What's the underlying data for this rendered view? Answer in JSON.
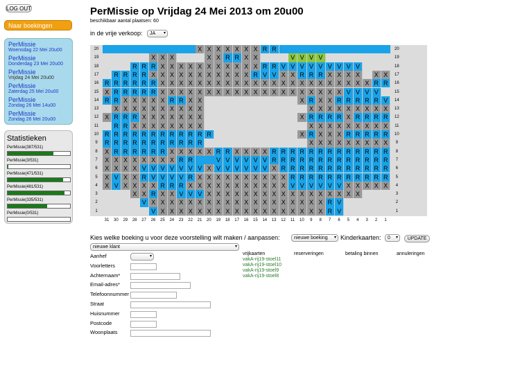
{
  "sidebar": {
    "logout_label": "LOG OUT",
    "naar_label": "Naar boekingen",
    "shows": [
      {
        "title": "PerMissie",
        "date": "Woensdag 22 Mei 20u00",
        "active": false
      },
      {
        "title": "PerMissie",
        "date": "Donderdag 23 Mei 20u00",
        "active": false
      },
      {
        "title": "PerMissie",
        "date": "Vrijdag 24 Mei 20u00",
        "active": true
      },
      {
        "title": "PerMissie",
        "date": "Zaterdag 25 Mei 20u00",
        "active": false
      },
      {
        "title": "PerMissie",
        "date": "Zondag 26 Mei 14u00",
        "active": false
      },
      {
        "title": "PerMissie",
        "date": "Zondag 26 Mei 20u00",
        "active": false
      }
    ],
    "stats_title": "Statistieken",
    "stats": [
      {
        "label": "PerMissie(387/531)",
        "fraction": 0.73
      },
      {
        "label": "PerMissie(3/531)",
        "fraction": 0.01
      },
      {
        "label": "PerMissie(471/531)",
        "fraction": 0.89
      },
      {
        "label": "PerMissie(481/531)",
        "fraction": 0.91
      },
      {
        "label": "PerMissie(335/531)",
        "fraction": 0.63
      },
      {
        "label": "PerMissie(0/531)",
        "fraction": 0.0
      }
    ]
  },
  "header": {
    "title": "PerMissie op Vrijdag 24 Mei 2013 om 20u00",
    "capacity": "beschikbaar aantal plaatsen: 60",
    "vrije_label": "in de vrije verkoop:",
    "vrije_value": "JA"
  },
  "legend_colors": {
    "free": "#1aa3e8",
    "taken": "#999999",
    "selected": "#8cc63f",
    "empty": "#dcdcdc"
  },
  "seating": {
    "rows": [
      "20",
      "19",
      "18",
      "17",
      "16",
      "15",
      "14",
      "13",
      "12",
      "11",
      "10",
      "9",
      "8",
      "7",
      "6",
      "5",
      "4",
      "3",
      "2",
      "1"
    ],
    "columns": [
      "31",
      "30",
      "29",
      "28",
      "27",
      "26",
      "25",
      "24",
      "23",
      "22",
      "21",
      "20",
      "19",
      "18",
      "17",
      "16",
      "15",
      "14",
      "13",
      "12",
      "11",
      "10",
      "9",
      "8",
      "7",
      "6",
      "5",
      "4",
      "3",
      "2",
      "1"
    ],
    "map": [
      "BBBBBBBBBBXXXXXXXRRBBBBBBBBBBBB",
      "EEEEEXXXEEEXXRRXXEEEGGGGEEEEEEE",
      "EEERRRXXXXXXXXXXXRRVVVVVVVVVEEE",
      "ERRRRXXXXXXXXXXXRVVXXRRRXXXXEXX",
      "RRRRRRXXXXXXXXXXXXXXXXXXXXXXXRR",
      "XRRRRRXXXXXXXXXXXXXXXXXXXXVVVVE",
      "RRXXXXXRRXXEEEEEEEEEEXRXXRRRRRV",
      "EXXXXXXXXXXEEEEEEEEEEEXXXXXXXXX",
      "XRRRXXXXXXXEEEEEEEEEEXRRRRXRRRR",
      "ERRXXXXXXXXEEEEEEEEEEEXXXXXXXXX",
      "RRRRRRRRRRRREEEEEEEEEXRXXXRRRRR",
      "RRRRRRRRRRREEEEEEEEEEEXXXXXXXXX",
      "XRRRRRRXXXXXRRXXXXRRRRRRRRRRRRR",
      "XXXXXXXXRRBBVVVVVVRRRRRRRRRRRRR",
      "XXXXVVVVVVVXVVVVVVXRRRRRRRRRRRR",
      "XVXXRVVVVRXXXXXXXXXXRRRRRRRRRRR",
      "XVXXXXRRRXXXXXXXXXXXVVVVVVXXXXX",
      "EEEXXRXXVVVXXXXXXXXXXXXXXXXXEEE",
      "EEEEVXXXXXXXXXXXXXXXXXXXRVEEEEE",
      "EEEEEVXXXXXXXXXXXXXXXXXXRVEEEEE"
    ]
  },
  "booking": {
    "kies_label": "Kies welke boeking u voor deze voorstelling wilt maken / aanpassen:",
    "kies_value": "nieuwe boeking",
    "kinder_label": "Kinderkaarten:",
    "kinder_value": "0",
    "update_label": "UPDATE",
    "klant_value": "nieuwe klant"
  },
  "form": {
    "fields": [
      "Aanhef",
      "Voorletters",
      "Achternaam*",
      "Email-adres*",
      "Telefoonnummer",
      "Straat",
      "Huisnummer",
      "Postcode",
      "Woonplaats"
    ]
  },
  "columns_right": {
    "headers": [
      "vrijkaarten",
      "reserveringen",
      "betaling binnen",
      "annuleringen"
    ],
    "vrijkaarten": [
      "vakA-rij19-stoel11",
      "vakA-rij19-stoel10",
      "vakA-rij19-stoel9",
      "vakA-rij19-stoel8"
    ]
  }
}
